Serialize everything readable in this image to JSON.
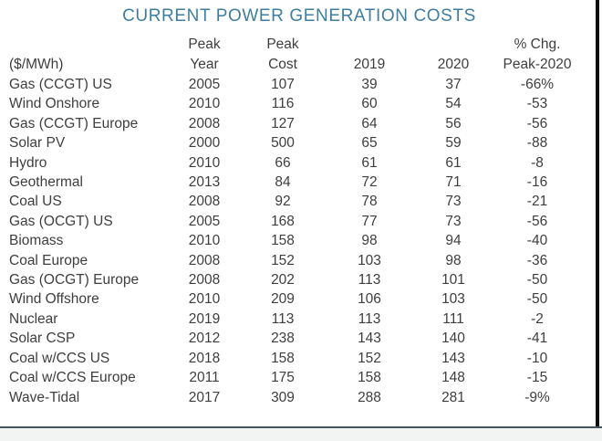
{
  "title": "CURRENT POWER GENERATION COSTS",
  "colors": {
    "title": "#3e7ea0",
    "body_text": "#3e3e3e",
    "right_border": "#0d0d0d",
    "bottom_rule": "#42555a",
    "bottom_strip": "#f2f4f4",
    "background": "#ffffff"
  },
  "chart_data": {
    "type": "table",
    "title": "CURRENT POWER GENERATION COSTS",
    "unit": "$/MWh",
    "columns": [
      "($/MWh)",
      "Peak Year",
      "Peak Cost",
      "2019",
      "2020",
      "% Chg. Peak-2020"
    ],
    "header_lines": [
      {
        "line1": "",
        "line2": "($/MWh)"
      },
      {
        "line1": "Peak",
        "line2": "Year"
      },
      {
        "line1": "Peak",
        "line2": "Cost"
      },
      {
        "line1": "",
        "line2": "2019"
      },
      {
        "line1": "",
        "line2": "2020"
      },
      {
        "line1": "% Chg.",
        "line2": "Peak-2020"
      }
    ],
    "rows": [
      [
        "Gas (CCGT) US",
        "2005",
        "107",
        "39",
        "37",
        "-66%"
      ],
      [
        "Wind Onshore",
        "2010",
        "116",
        "60",
        "54",
        "-53"
      ],
      [
        "Gas (CCGT) Europe",
        "2008",
        "127",
        "64",
        "56",
        "-56"
      ],
      [
        "Solar PV",
        "2000",
        "500",
        "65",
        "59",
        "-88"
      ],
      [
        "Hydro",
        "2010",
        "66",
        "61",
        "61",
        "-8"
      ],
      [
        "Geothermal",
        "2013",
        "84",
        "72",
        "71",
        "-16"
      ],
      [
        "Coal US",
        "2008",
        "92",
        "78",
        "73",
        "-21"
      ],
      [
        "Gas (OCGT) US",
        "2005",
        "168",
        "77",
        "73",
        "-56"
      ],
      [
        "Biomass",
        "2010",
        "158",
        "98",
        "94",
        "-40"
      ],
      [
        "Coal Europe",
        "2008",
        "152",
        "103",
        "98",
        "-36"
      ],
      [
        "Gas (OCGT) Europe",
        "2008",
        "202",
        "113",
        "101",
        "-50"
      ],
      [
        "Wind Offshore",
        "2010",
        "209",
        "106",
        "103",
        "-50"
      ],
      [
        "Nuclear",
        "2019",
        "113",
        "113",
        "111",
        "-2"
      ],
      [
        "Solar CSP",
        "2012",
        "238",
        "143",
        "140",
        "-41"
      ],
      [
        "Coal w/CCS US",
        "2018",
        "158",
        "152",
        "143",
        "-10"
      ],
      [
        "Coal w/CCS Europe",
        "2011",
        "175",
        "158",
        "148",
        "-15"
      ],
      [
        "Wave-Tidal",
        "2017",
        "309",
        "288",
        "281",
        "-9%"
      ]
    ]
  }
}
